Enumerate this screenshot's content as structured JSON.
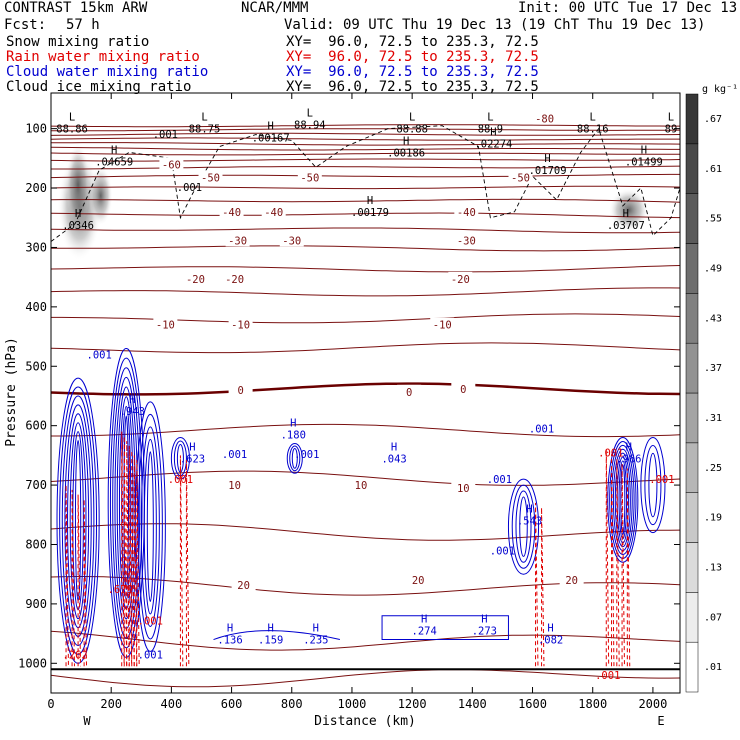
{
  "header": {
    "model": "CONTRAST 15km ARW",
    "center": "NCAR/MMM",
    "init": "Init: 00 UTC Tue 17 Dec 13",
    "fcst_label": "Fcst:",
    "fcst_value": "57 h",
    "valid": "Valid: 09 UTC Thu 19 Dec 13 (19 ChT Thu 19 Dec 13)",
    "fields": [
      {
        "name": "Snow mixing ratio",
        "xy": "XY=  96.0, 72.5 to 235.3, 72.5",
        "color": "#000000"
      },
      {
        "name": "Rain water mixing ratio",
        "xy": "XY=  96.0, 72.5 to 235.3, 72.5",
        "color": "#e00000"
      },
      {
        "name": "Cloud water mixing ratio",
        "xy": "XY=  96.0, 72.5 to 235.3, 72.5",
        "color": "#0000d0"
      },
      {
        "name": "Cloud ice mixing ratio",
        "xy": "XY=  96.0, 72.5 to 235.3, 72.5",
        "color": "#000000"
      }
    ]
  },
  "colors": {
    "temperature": "#7a1010",
    "freezing": "#6a0000",
    "rain": "#e00000",
    "cloud_water": "#0000d0",
    "ice": "#000000"
  },
  "chart_data": {
    "type": "contour cross-section",
    "xlabel": "Distance (km)",
    "ylabel": "Pressure (hPa)",
    "xlim": [
      0,
      2090
    ],
    "ylim": [
      1050,
      40
    ],
    "x_ticks": [
      "0",
      "200",
      "400",
      "600",
      "800",
      "1000",
      "1200",
      "1400",
      "1600",
      "1800",
      "2000"
    ],
    "y_ticks": [
      "100",
      "200",
      "300",
      "400",
      "500",
      "600",
      "700",
      "800",
      "900",
      "1000"
    ],
    "endpoints": [
      "W",
      "E"
    ],
    "colorbar": {
      "unit": "g kg⁻¹",
      "labels": [
        ".01",
        ".07",
        ".13",
        ".19",
        ".25",
        ".31",
        ".37",
        ".43",
        ".49",
        ".55",
        ".61",
        ".67"
      ]
    },
    "temperature_contours": [
      {
        "label": "-80",
        "x": 1640,
        "p": 83
      },
      {
        "label": "-60",
        "x": 400,
        "p": 160
      },
      {
        "label": "-50",
        "x": 530,
        "p": 182
      },
      {
        "label": "-50",
        "x": 860,
        "p": 182
      },
      {
        "label": "-50",
        "x": 1560,
        "p": 182
      },
      {
        "label": "-40",
        "x": 600,
        "p": 240
      },
      {
        "label": "-40",
        "x": 740,
        "p": 240
      },
      {
        "label": "-40",
        "x": 1380,
        "p": 240
      },
      {
        "label": "-30",
        "x": 620,
        "p": 288
      },
      {
        "label": "-30",
        "x": 800,
        "p": 288
      },
      {
        "label": "-30",
        "x": 1380,
        "p": 288
      },
      {
        "label": "-20",
        "x": 480,
        "p": 353
      },
      {
        "label": "-20",
        "x": 610,
        "p": 353
      },
      {
        "label": "-20",
        "x": 1360,
        "p": 353
      },
      {
        "label": "-10",
        "x": 380,
        "p": 430
      },
      {
        "label": "-10",
        "x": 630,
        "p": 430
      },
      {
        "label": "-10",
        "x": 1300,
        "p": 430
      },
      {
        "label": "0",
        "x": 630,
        "p": 540
      },
      {
        "label": "0",
        "x": 1190,
        "p": 543
      },
      {
        "label": "0",
        "x": 1370,
        "p": 538
      },
      {
        "label": "10",
        "x": 610,
        "p": 700
      },
      {
        "label": "10",
        "x": 1030,
        "p": 700
      },
      {
        "label": "10",
        "x": 1370,
        "p": 705
      },
      {
        "label": "20",
        "x": 640,
        "p": 868
      },
      {
        "label": "20",
        "x": 1730,
        "p": 860
      },
      {
        "label": "20",
        "x": 1220,
        "p": 860
      }
    ],
    "extrema_labels": [
      {
        "type": "L",
        "value": "88.86",
        "x": 70,
        "p": 100,
        "color": "ice"
      },
      {
        "type": "L",
        "value": "88.75",
        "x": 510,
        "p": 100,
        "color": "ice"
      },
      {
        "type": "L",
        "value": "88.94",
        "x": 860,
        "p": 93,
        "color": "ice"
      },
      {
        "type": "L",
        "value": "88.88",
        "x": 1200,
        "p": 100,
        "color": "ice"
      },
      {
        "type": "L",
        "value": "88.9",
        "x": 1460,
        "p": 100,
        "color": "ice"
      },
      {
        "type": "L",
        "value": "88.16",
        "x": 1800,
        "p": 100,
        "color": "ice"
      },
      {
        "type": "L",
        "value": "89",
        "x": 2060,
        "p": 100,
        "color": "ice"
      },
      {
        "type": "",
        "value": ".001",
        "x": 380,
        "p": 109,
        "color": "ice"
      },
      {
        "type": "H",
        "value": ".00167",
        "x": 730,
        "p": 115,
        "color": "ice"
      },
      {
        "type": "H",
        "value": ".02274",
        "x": 1470,
        "p": 125,
        "color": "ice"
      },
      {
        "type": "H",
        "value": ".00186",
        "x": 1180,
        "p": 140,
        "color": "ice"
      },
      {
        "type": "H",
        "value": ".04659",
        "x": 210,
        "p": 155,
        "color": "ice"
      },
      {
        "type": "H",
        "value": ".01709",
        "x": 1650,
        "p": 170,
        "color": "ice"
      },
      {
        "type": "H",
        "value": ".01499",
        "x": 1970,
        "p": 155,
        "color": "ice"
      },
      {
        "type": "",
        "value": ".001",
        "x": 460,
        "p": 198,
        "color": "ice"
      },
      {
        "type": "H",
        "value": ".00179",
        "x": 1060,
        "p": 240,
        "color": "ice"
      },
      {
        "type": "H",
        "value": ".0346",
        "x": 90,
        "p": 262,
        "color": "ice"
      },
      {
        "type": "H",
        "value": ".03707",
        "x": 1910,
        "p": 262,
        "color": "ice"
      },
      {
        "type": "",
        "value": ".001",
        "x": 160,
        "p": 480,
        "color": "cloud_water"
      },
      {
        "type": "H",
        "value": ".943",
        "x": 270,
        "p": 575,
        "color": "cloud_water"
      },
      {
        "type": "H",
        "value": ".180",
        "x": 805,
        "p": 615,
        "color": "cloud_water"
      },
      {
        "type": "",
        "value": ".001",
        "x": 610,
        "p": 648,
        "color": "cloud_water"
      },
      {
        "type": "",
        "value": ".001",
        "x": 850,
        "p": 648,
        "color": "cloud_water"
      },
      {
        "type": "H",
        "value": ".043",
        "x": 1140,
        "p": 655,
        "color": "cloud_water"
      },
      {
        "type": "H",
        "value": ".623",
        "x": 470,
        "p": 655,
        "color": "cloud_water"
      },
      {
        "type": "",
        "value": ".001",
        "x": 1630,
        "p": 605,
        "color": "cloud_water"
      },
      {
        "type": "H",
        "value": ".966",
        "x": 1920,
        "p": 655,
        "color": "cloud_water"
      },
      {
        "type": "",
        "value": ".001",
        "x": 1490,
        "p": 690,
        "color": "cloud_water"
      },
      {
        "type": "H",
        "value": ".543",
        "x": 1590,
        "p": 760,
        "color": "cloud_water"
      },
      {
        "type": "",
        "value": ".001",
        "x": 1500,
        "p": 810,
        "color": "cloud_water"
      },
      {
        "type": "H",
        "value": ".136",
        "x": 595,
        "p": 960,
        "color": "cloud_water"
      },
      {
        "type": "H",
        "value": ".159",
        "x": 730,
        "p": 960,
        "color": "cloud_water"
      },
      {
        "type": "H",
        "value": ".235",
        "x": 880,
        "p": 960,
        "color": "cloud_water"
      },
      {
        "type": "H",
        "value": ".274",
        "x": 1240,
        "p": 945,
        "color": "cloud_water"
      },
      {
        "type": "H",
        "value": ".273",
        "x": 1440,
        "p": 945,
        "color": "cloud_water"
      },
      {
        "type": "H",
        "value": ".082",
        "x": 1660,
        "p": 960,
        "color": "cloud_water"
      },
      {
        "type": "",
        "value": ".001",
        "x": 330,
        "p": 985,
        "color": "cloud_water"
      },
      {
        "type": "",
        "value": ".001",
        "x": 330,
        "p": 928,
        "color": "rain"
      },
      {
        "type": "",
        "value": ".262",
        "x": 80,
        "p": 985,
        "color": "rain"
      },
      {
        "type": "",
        "value": ".679",
        "x": 230,
        "p": 875,
        "color": "rain"
      },
      {
        "type": "",
        "value": ".001",
        "x": 430,
        "p": 690,
        "color": "rain"
      },
      {
        "type": "",
        "value": ".001",
        "x": 1850,
        "p": 1020,
        "color": "rain"
      },
      {
        "type": "",
        "value": ".001",
        "x": 2030,
        "p": 690,
        "color": "rain"
      },
      {
        "type": "",
        "value": ".001",
        "x": 1860,
        "p": 645,
        "color": "rain"
      }
    ]
  }
}
